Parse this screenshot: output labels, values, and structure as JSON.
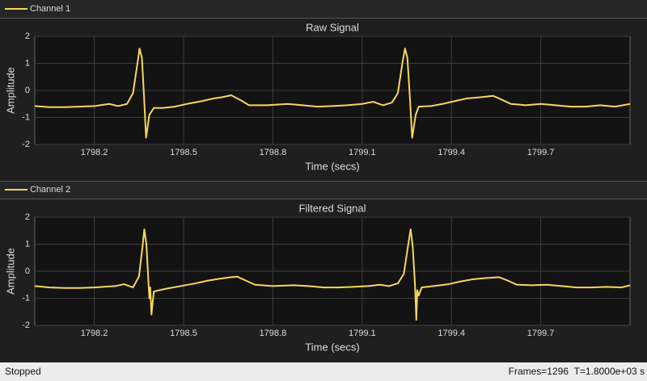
{
  "chart_data": [
    {
      "type": "line",
      "title": "Raw Signal",
      "xlabel": "Time (secs)",
      "ylabel": "Amplitude",
      "x": [
        1798.0,
        1798.05,
        1798.1,
        1798.15,
        1798.2,
        1798.25,
        1798.28,
        1798.31,
        1798.33,
        1798.345,
        1798.352,
        1798.36,
        1798.367,
        1798.374,
        1798.385,
        1798.4,
        1798.43,
        1798.47,
        1798.52,
        1798.56,
        1798.6,
        1798.63,
        1798.66,
        1798.69,
        1798.72,
        1798.78,
        1798.85,
        1798.9,
        1798.95,
        1799.0,
        1799.05,
        1799.1,
        1799.137,
        1799.17,
        1799.2,
        1799.22,
        1799.235,
        1799.244,
        1799.252,
        1799.26,
        1799.268,
        1799.28,
        1799.29,
        1799.33,
        1799.37,
        1799.41,
        1799.45,
        1799.5,
        1799.54,
        1799.57,
        1799.6,
        1799.65,
        1799.7,
        1799.75,
        1799.8,
        1799.85,
        1799.9,
        1799.95,
        1800.0
      ],
      "series": [
        {
          "name": "Channel 1",
          "color": "#f7d85a",
          "values": [
            -0.58,
            -0.62,
            -0.62,
            -0.6,
            -0.58,
            -0.5,
            -0.58,
            -0.5,
            -0.1,
            1.0,
            1.55,
            1.2,
            -0.2,
            -1.75,
            -0.9,
            -0.65,
            -0.65,
            -0.6,
            -0.48,
            -0.4,
            -0.3,
            -0.25,
            -0.18,
            -0.35,
            -0.55,
            -0.55,
            -0.5,
            -0.55,
            -0.6,
            -0.58,
            -0.55,
            -0.5,
            -0.42,
            -0.55,
            -0.45,
            -0.1,
            1.0,
            1.55,
            1.2,
            -0.2,
            -1.75,
            -0.9,
            -0.6,
            -0.58,
            -0.5,
            -0.4,
            -0.3,
            -0.25,
            -0.2,
            -0.35,
            -0.5,
            -0.55,
            -0.5,
            -0.55,
            -0.6,
            -0.6,
            -0.55,
            -0.6,
            -0.5
          ]
        }
      ],
      "xlim": [
        1798,
        1800
      ],
      "xticks": [
        1798.2,
        1798.5,
        1798.8,
        1799.1,
        1799.4,
        1799.7
      ],
      "ylim": [
        -2,
        2
      ],
      "yticks": [
        -2,
        -1,
        0,
        1,
        2
      ],
      "grid": true
    },
    {
      "type": "line",
      "title": "Filtered Signal",
      "xlabel": "Time (secs)",
      "ylabel": "Amplitude",
      "x": [
        1798.0,
        1798.05,
        1798.1,
        1798.15,
        1798.2,
        1798.27,
        1798.3,
        1798.33,
        1798.35,
        1798.362,
        1798.368,
        1798.375,
        1798.382,
        1798.385,
        1798.388,
        1798.392,
        1798.4,
        1798.44,
        1798.49,
        1798.54,
        1798.58,
        1798.62,
        1798.66,
        1798.68,
        1798.71,
        1798.74,
        1798.8,
        1798.87,
        1798.92,
        1798.97,
        1799.02,
        1799.07,
        1799.12,
        1799.16,
        1799.19,
        1799.22,
        1799.24,
        1799.255,
        1799.263,
        1799.27,
        1799.278,
        1799.282,
        1799.285,
        1799.29,
        1799.3,
        1799.34,
        1799.39,
        1799.43,
        1799.47,
        1799.52,
        1799.56,
        1799.59,
        1799.62,
        1799.67,
        1799.72,
        1799.77,
        1799.82,
        1799.87,
        1799.92,
        1799.97,
        1800.0
      ],
      "series": [
        {
          "name": "Channel 2",
          "color": "#f7d85a",
          "values": [
            -0.55,
            -0.6,
            -0.62,
            -0.62,
            -0.6,
            -0.55,
            -0.48,
            -0.6,
            -0.2,
            0.9,
            1.55,
            1.0,
            -0.4,
            -1.0,
            -0.6,
            -1.6,
            -0.75,
            -0.65,
            -0.55,
            -0.45,
            -0.35,
            -0.28,
            -0.22,
            -0.2,
            -0.35,
            -0.5,
            -0.55,
            -0.52,
            -0.55,
            -0.6,
            -0.6,
            -0.58,
            -0.55,
            -0.5,
            -0.55,
            -0.45,
            -0.1,
            1.0,
            1.55,
            0.9,
            -0.6,
            -1.8,
            -0.7,
            -0.9,
            -0.6,
            -0.55,
            -0.48,
            -0.38,
            -0.3,
            -0.25,
            -0.22,
            -0.35,
            -0.5,
            -0.52,
            -0.5,
            -0.55,
            -0.6,
            -0.6,
            -0.58,
            -0.6,
            -0.52
          ]
        }
      ],
      "xlim": [
        1798,
        1800
      ],
      "xticks": [
        1798.2,
        1798.5,
        1798.8,
        1799.1,
        1799.4,
        1799.7
      ],
      "ylim": [
        -2,
        2
      ],
      "yticks": [
        -2,
        -1,
        0,
        1,
        2
      ],
      "grid": true
    }
  ],
  "status_bar": {
    "state": "Stopped",
    "frames": "Frames=1296",
    "time": "T=1.8000e+03 s"
  }
}
